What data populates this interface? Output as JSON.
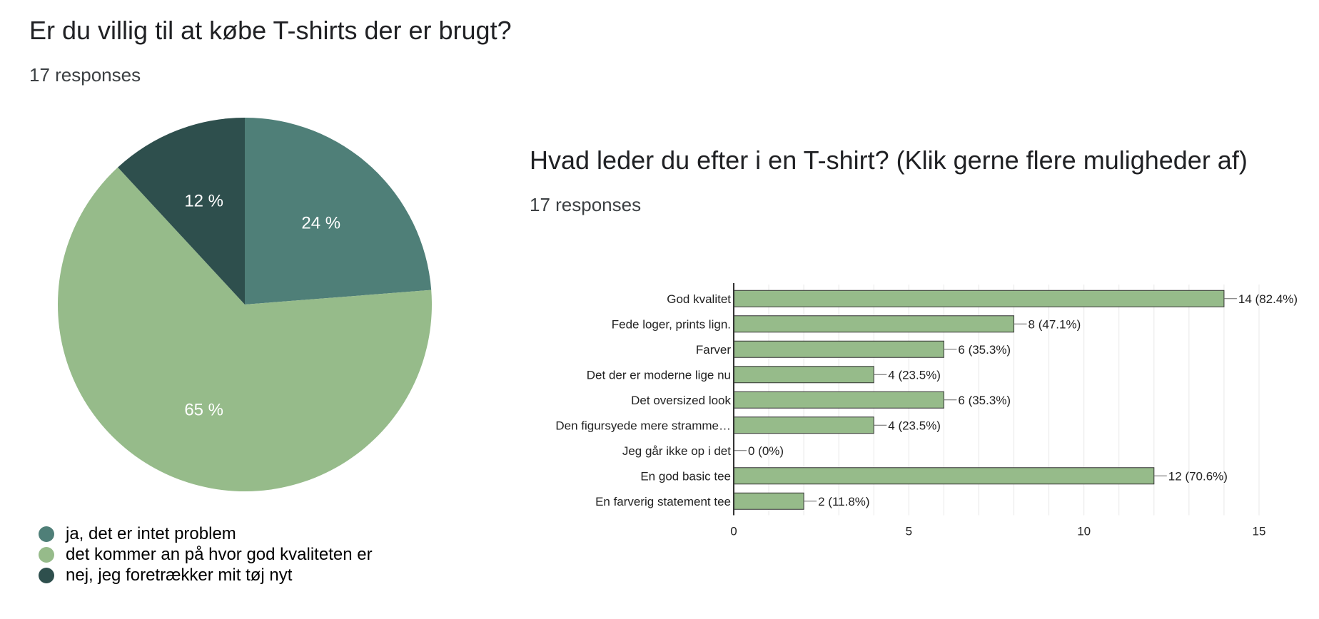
{
  "q1": {
    "title": "Er du villig til at købe T-shirts der er brugt?",
    "responses": "17 responses"
  },
  "q2": {
    "title": "Hvad leder du efter i en T-shirt? (Klik gerne flere muligheder af)",
    "responses": "17 responses"
  },
  "colors": {
    "dark_teal": "#2e4f4d",
    "teal": "#4f7f78",
    "light_green": "#96bb8a",
    "grid": "#e8e8e8",
    "axis": "#333333"
  },
  "chart_data": [
    {
      "type": "pie",
      "title": "Er du villig til at købe T-shirts der er brugt?",
      "slices": [
        {
          "label": "ja, det er intet problem",
          "value": 24,
          "display": "24 %",
          "color": "#4f7f78"
        },
        {
          "label": "det kommer an på hvor god kvaliteten er",
          "value": 65,
          "display": "65 %",
          "color": "#96bb8a"
        },
        {
          "label": "nej, jeg foretrækker mit tøj nyt",
          "value": 12,
          "display": "12 %",
          "color": "#2e4f4d"
        }
      ],
      "legend_position": "bottom-left"
    },
    {
      "type": "bar",
      "orientation": "horizontal",
      "title": "Hvad leder du efter i en T-shirt? (Klik gerne flere muligheder af)",
      "categories": [
        "God kvalitet",
        "Fede loger, prints lign.",
        "Farver",
        "Det der er moderne lige nu",
        "Det oversized look",
        "Den figursyede mere stramme…",
        "Jeg går ikke op i det",
        "En god basic tee",
        "En farverig statement tee"
      ],
      "values": [
        14,
        8,
        6,
        4,
        6,
        4,
        0,
        12,
        2
      ],
      "data_labels": [
        "14 (82.4%)",
        "8 (47.1%)",
        "6 (35.3%)",
        "4 (23.5%)",
        "6 (35.3%)",
        "4 (23.5%)",
        "0 (0%)",
        "12 (70.6%)",
        "2 (11.8%)"
      ],
      "xlim": [
        0,
        15
      ],
      "xticks": [
        0,
        5,
        10,
        15
      ],
      "grid": true,
      "bar_color": "#96bb8a"
    }
  ]
}
